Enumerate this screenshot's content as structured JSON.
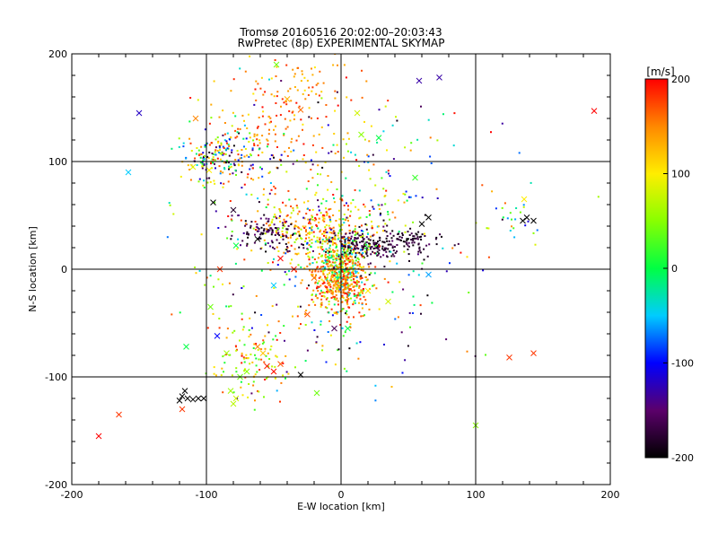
{
  "chart_data": {
    "type": "scatter",
    "title_line1": "Tromsø 20160516 20:02:00–20:03:43",
    "title_line2": "RwPretec (8p) EXPERIMENTAL SKYMAP",
    "xlabel": "E-W location [km]",
    "ylabel": "N-S location [km]",
    "xlim": [
      -200,
      200
    ],
    "ylim": [
      -200,
      200
    ],
    "x_ticks": [
      -200,
      -100,
      0,
      100,
      200
    ],
    "y_ticks": [
      -200,
      -100,
      0,
      100,
      200
    ],
    "grid_lines_x": [
      -100,
      0,
      100
    ],
    "grid_lines_y": [
      -100,
      0,
      100
    ],
    "colorbar": {
      "label": "[m/s]",
      "min": -200,
      "max": 200,
      "ticks": [
        200,
        100,
        0,
        -100,
        -200
      ]
    },
    "clusters": [
      {
        "cx": 0,
        "cy": 0,
        "sx": 10,
        "sy": 18,
        "n": 450,
        "vmin": -60,
        "vmax": 200
      },
      {
        "cx": 20,
        "cy": 22,
        "sx": 18,
        "sy": 8,
        "n": 220,
        "vmin": -200,
        "vmax": -150
      },
      {
        "cx": -20,
        "cy": 40,
        "sx": 22,
        "sy": 15,
        "n": 260,
        "vmin": 60,
        "vmax": 200
      },
      {
        "cx": -55,
        "cy": 35,
        "sx": 12,
        "sy": 8,
        "n": 100,
        "vmin": -200,
        "vmax": -140
      },
      {
        "cx": -90,
        "cy": 105,
        "sx": 15,
        "sy": 12,
        "n": 180,
        "vmin": -200,
        "vmax": 200
      },
      {
        "cx": -40,
        "cy": 140,
        "sx": 28,
        "sy": 30,
        "n": 200,
        "vmin": 100,
        "vmax": 200
      },
      {
        "cx": -65,
        "cy": -85,
        "sx": 15,
        "sy": 20,
        "n": 110,
        "vmin": 0,
        "vmax": 200
      },
      {
        "cx": 0,
        "cy": -15,
        "sx": 12,
        "sy": 12,
        "n": 220,
        "vmin": 120,
        "vmax": 200
      },
      {
        "cx": 55,
        "cy": 28,
        "sx": 8,
        "sy": 3,
        "n": 45,
        "vmin": -200,
        "vmax": -160
      },
      {
        "cx": 0,
        "cy": 60,
        "sx": 60,
        "sy": 55,
        "n": 280,
        "vmin": -200,
        "vmax": 200
      },
      {
        "cx": -10,
        "cy": -20,
        "sx": 50,
        "sy": 45,
        "n": 160,
        "vmin": -200,
        "vmax": 200
      },
      {
        "cx": 130,
        "cy": 45,
        "sx": 15,
        "sy": 8,
        "n": 18,
        "vmin": -200,
        "vmax": 100
      }
    ],
    "crosses": [
      [
        -118,
        -118,
        -200
      ],
      [
        -114,
        -120,
        -200
      ],
      [
        -110,
        -121,
        -200
      ],
      [
        -106,
        -120,
        -200
      ],
      [
        -102,
        -120,
        -200
      ],
      [
        -116,
        -113,
        -200
      ],
      [
        -120,
        -122,
        -200
      ],
      [
        -118,
        -130,
        180
      ],
      [
        -165,
        -135,
        180
      ],
      [
        -180,
        -155,
        200
      ],
      [
        -78,
        -120,
        80
      ],
      [
        -82,
        -113,
        60
      ],
      [
        -80,
        -125,
        70
      ],
      [
        -75,
        -100,
        40
      ],
      [
        -70,
        -95,
        50
      ],
      [
        -62,
        -72,
        150
      ],
      [
        -58,
        -78,
        120
      ],
      [
        -55,
        -90,
        190
      ],
      [
        -50,
        -95,
        200
      ],
      [
        -45,
        -88,
        170
      ],
      [
        -85,
        -78,
        60
      ],
      [
        -92,
        -62,
        -100
      ],
      [
        -97,
        -35,
        40
      ],
      [
        -115,
        -72,
        0
      ],
      [
        -150,
        145,
        -120
      ],
      [
        -108,
        140,
        150
      ],
      [
        -98,
        92,
        100
      ],
      [
        -110,
        95,
        90
      ],
      [
        -48,
        190,
        40
      ],
      [
        -40,
        158,
        130
      ],
      [
        -30,
        148,
        160
      ],
      [
        -95,
        62,
        -200
      ],
      [
        -80,
        55,
        -180
      ],
      [
        -78,
        22,
        0
      ],
      [
        -62,
        28,
        -200
      ],
      [
        -45,
        10,
        200
      ],
      [
        -35,
        0,
        190
      ],
      [
        -20,
        -8,
        160
      ],
      [
        12,
        145,
        80
      ],
      [
        15,
        125,
        50
      ],
      [
        28,
        122,
        0
      ],
      [
        58,
        175,
        -130
      ],
      [
        73,
        178,
        -130
      ],
      [
        60,
        42,
        -200
      ],
      [
        65,
        48,
        -200
      ],
      [
        135,
        45,
        -200
      ],
      [
        138,
        48,
        -200
      ],
      [
        143,
        45,
        -200
      ],
      [
        136,
        65,
        100
      ],
      [
        125,
        -82,
        180
      ],
      [
        143,
        -78,
        180
      ],
      [
        100,
        -145,
        50
      ],
      [
        -158,
        90,
        -50
      ],
      [
        65,
        -5,
        -60
      ],
      [
        -90,
        0,
        180
      ],
      [
        -50,
        -15,
        -50
      ],
      [
        -18,
        -115,
        40
      ],
      [
        -30,
        -98,
        -200
      ],
      [
        5,
        -55,
        0
      ],
      [
        -5,
        -55,
        -160
      ],
      [
        188,
        147,
        200
      ],
      [
        55,
        85,
        20
      ],
      [
        20,
        -20,
        100
      ],
      [
        -25,
        -42,
        170
      ],
      [
        35,
        -30,
        80
      ]
    ]
  }
}
